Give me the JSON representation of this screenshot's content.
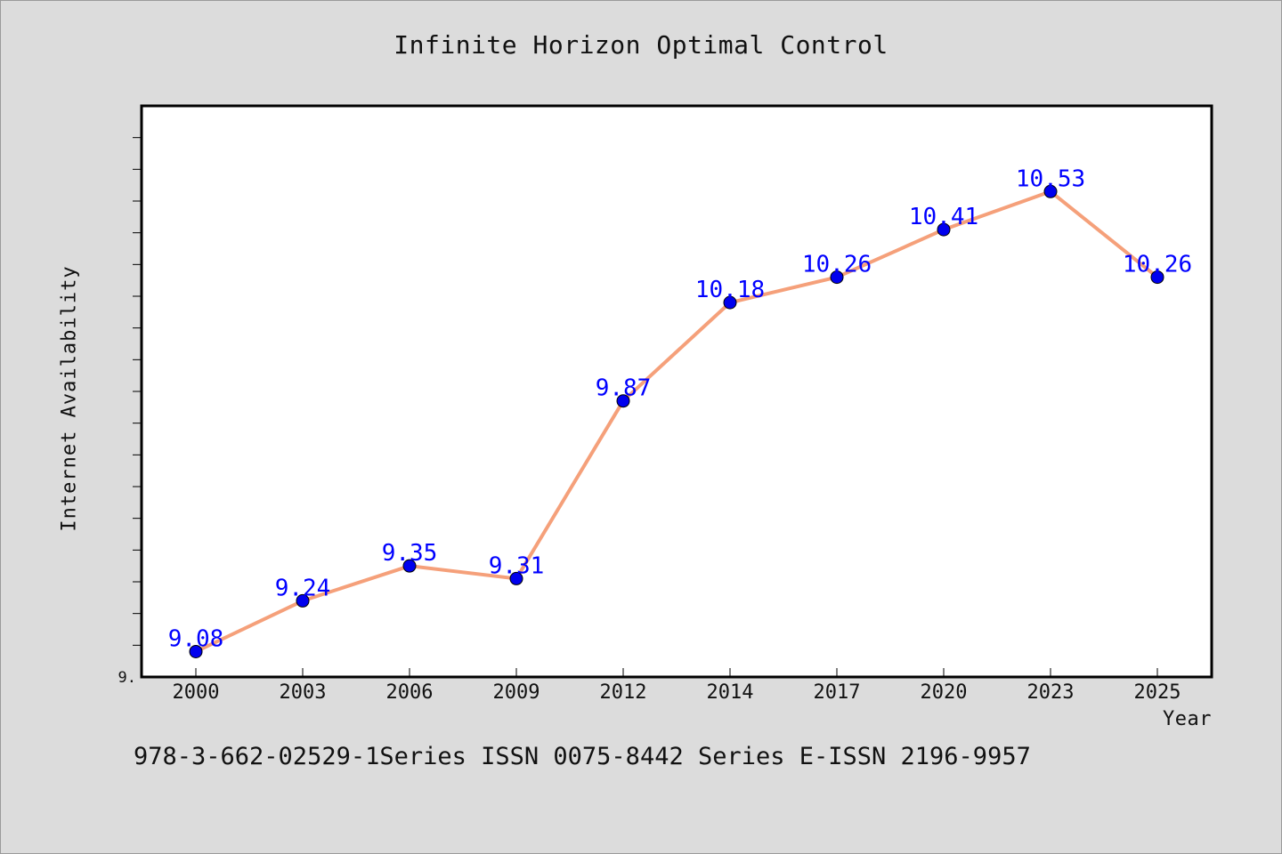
{
  "chart_data": {
    "type": "line",
    "title": "Infinite Horizon Optimal Control",
    "xlabel": "Year",
    "ylabel": "Internet Availability",
    "categories": [
      "2000",
      "2003",
      "2006",
      "2009",
      "2012",
      "2014",
      "2017",
      "2020",
      "2023",
      "2025"
    ],
    "series": [
      {
        "values": [
          9.08,
          9.24,
          9.35,
          9.31,
          9.87,
          10.18,
          10.26,
          10.41,
          10.53,
          10.26
        ],
        "labels": [
          "9.08",
          "9.24",
          "9.35",
          "9.31",
          "9.87",
          "10.18",
          "10.26",
          "10.41",
          "10.53",
          "10.26"
        ],
        "line_color": "#f5a07a",
        "marker_color": "#0000ee",
        "label_color": "#0000ff"
      }
    ],
    "ylim": [
      9.0,
      10.8
    ],
    "y_tick_step": 0.1,
    "y_tick_labels": [
      "9."
    ],
    "grid": false,
    "legend": "none",
    "plot_background": "#ffffff",
    "page_background": "#dcdcdc"
  },
  "footer_note": "978-3-662-02529-1Series ISSN 0075-8442 Series E-ISSN 2196-9957"
}
